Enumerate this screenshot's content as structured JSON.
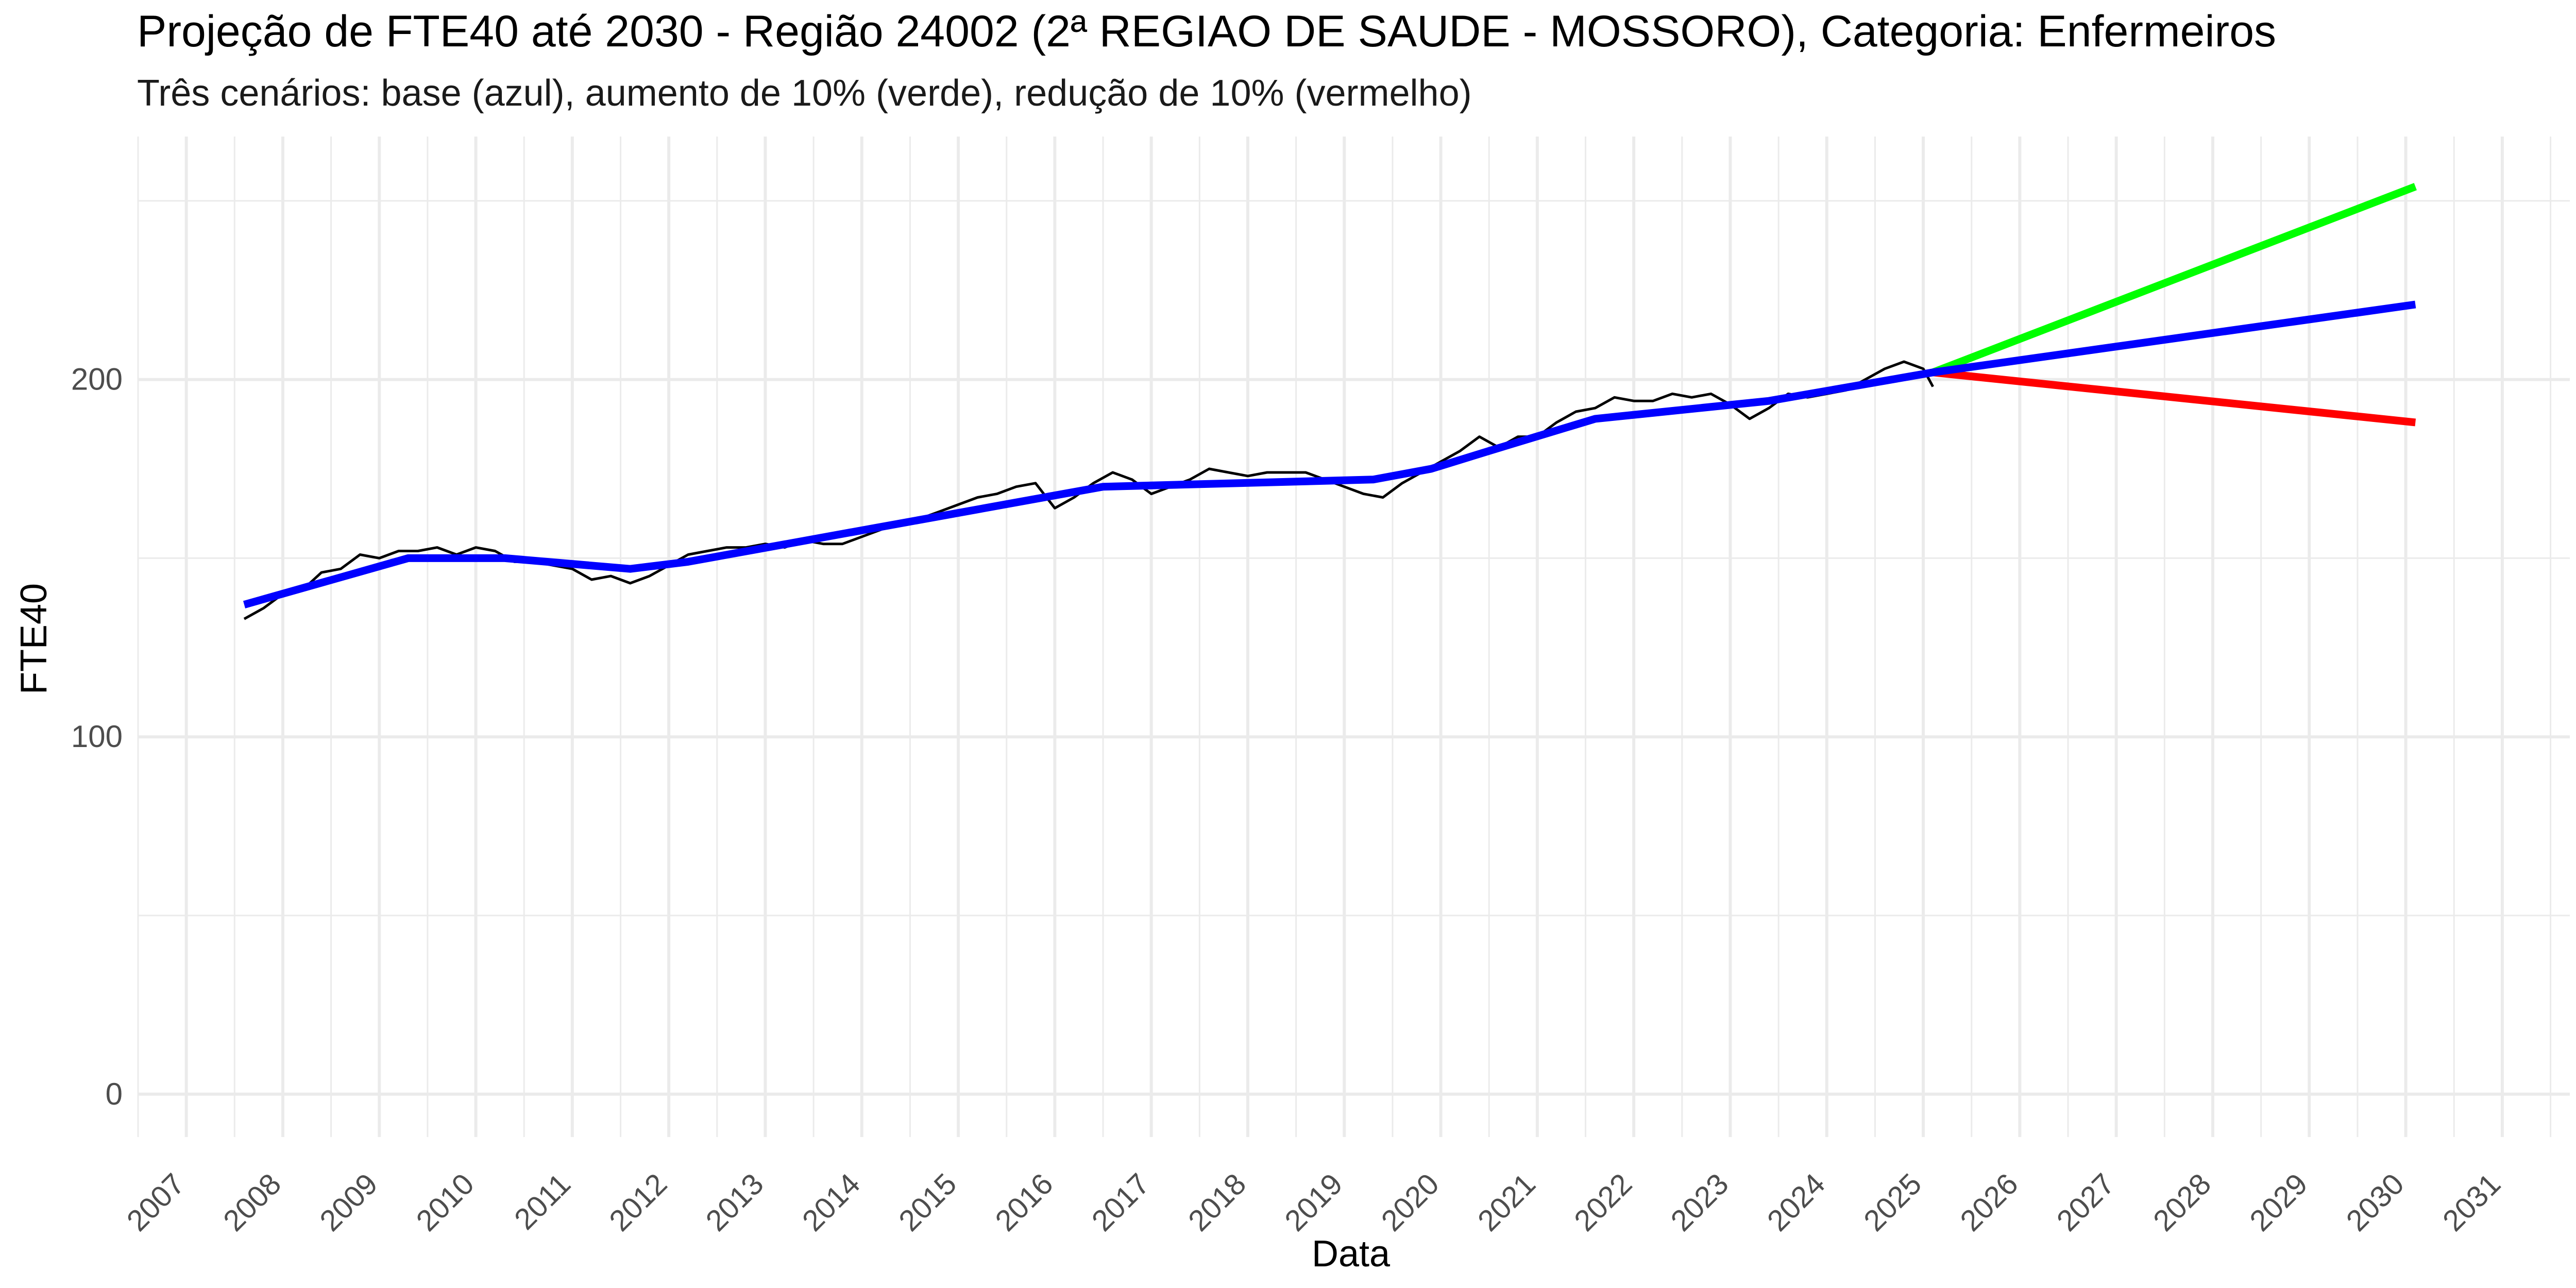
{
  "chart_data": {
    "type": "line",
    "title": "Projeção de FTE40 até 2030 - Região 24002 (2ª REGIAO DE SAUDE - MOSSORO), Categoria: Enfermeiros",
    "subtitle": "Três cenários: base (azul), aumento de 10% (verde), redução de 10% (vermelho)",
    "xlabel": "Data",
    "ylabel": "FTE40",
    "x_ticks": [
      "2007",
      "2008",
      "2009",
      "2010",
      "2011",
      "2012",
      "2013",
      "2014",
      "2015",
      "2016",
      "2017",
      "2018",
      "2019",
      "2020",
      "2021",
      "2022",
      "2023",
      "2024",
      "2025",
      "2026",
      "2027",
      "2028",
      "2029",
      "2030",
      "2031"
    ],
    "y_ticks": [
      "0",
      "100",
      "200"
    ],
    "xlim": [
      2006.5,
      2031.7
    ],
    "ylim": [
      -12,
      268
    ],
    "grid": true,
    "legend": "none",
    "colors": {
      "observed": "#000000",
      "base": "#0000ff",
      "increase": "#00ff00",
      "decrease": "#ff0000",
      "grid": "#ebebeb"
    },
    "series": [
      {
        "key": "observed",
        "x": [
          2007.6,
          2007.8,
          2008.0,
          2008.2,
          2008.4,
          2008.6,
          2008.8,
          2009.0,
          2009.2,
          2009.4,
          2009.6,
          2009.8,
          2010.0,
          2010.2,
          2010.4,
          2010.6,
          2010.8,
          2011.0,
          2011.2,
          2011.4,
          2011.6,
          2011.8,
          2012.0,
          2012.2,
          2012.4,
          2012.6,
          2012.8,
          2013.0,
          2013.2,
          2013.4,
          2013.6,
          2013.8,
          2014.0,
          2014.2,
          2014.4,
          2014.6,
          2014.8,
          2015.0,
          2015.2,
          2015.4,
          2015.6,
          2015.8,
          2016.0,
          2016.2,
          2016.4,
          2016.6,
          2016.8,
          2017.0,
          2017.2,
          2017.4,
          2017.6,
          2017.8,
          2018.0,
          2018.2,
          2018.4,
          2018.6,
          2018.8,
          2019.0,
          2019.2,
          2019.4,
          2019.6,
          2019.8,
          2020.0,
          2020.2,
          2020.4,
          2020.6,
          2020.8,
          2021.0,
          2021.2,
          2021.4,
          2021.6,
          2021.8,
          2022.0,
          2022.2,
          2022.4,
          2022.6,
          2022.8,
          2023.0,
          2023.2,
          2023.4,
          2023.6,
          2023.8,
          2024.0,
          2024.2,
          2024.4,
          2024.6,
          2024.8,
          2025.0,
          2025.1
        ],
        "values": [
          133,
          136,
          140,
          141,
          146,
          147,
          151,
          150,
          152,
          152,
          153,
          151,
          153,
          152,
          149,
          149,
          148,
          147,
          144,
          145,
          143,
          145,
          148,
          151,
          152,
          153,
          153,
          154,
          153,
          155,
          154,
          154,
          156,
          158,
          160,
          161,
          163,
          165,
          167,
          168,
          170,
          171,
          164,
          167,
          171,
          174,
          172,
          168,
          170,
          172,
          175,
          174,
          173,
          174,
          174,
          174,
          172,
          170,
          168,
          167,
          171,
          174,
          177,
          180,
          184,
          181,
          184,
          184,
          188,
          191,
          192,
          195,
          194,
          194,
          196,
          195,
          196,
          193,
          189,
          192,
          196,
          195,
          196,
          197,
          200,
          203,
          205,
          203,
          198
        ]
      },
      {
        "key": "base",
        "x": [
          2007.6,
          2009.3,
          2010.3,
          2011.6,
          2012.2,
          2016.5,
          2019.3,
          2019.9,
          2020.5,
          2021.6,
          2023.4,
          2025.1,
          2030.1
        ],
        "values": [
          137,
          150,
          150,
          147,
          149,
          170,
          172,
          175,
          180,
          189,
          194,
          202,
          221
        ]
      },
      {
        "key": "increase",
        "x": [
          2025.1,
          2030.1
        ],
        "values": [
          202,
          254
        ]
      },
      {
        "key": "decrease",
        "x": [
          2025.1,
          2030.1
        ],
        "values": [
          202,
          188
        ]
      }
    ]
  }
}
